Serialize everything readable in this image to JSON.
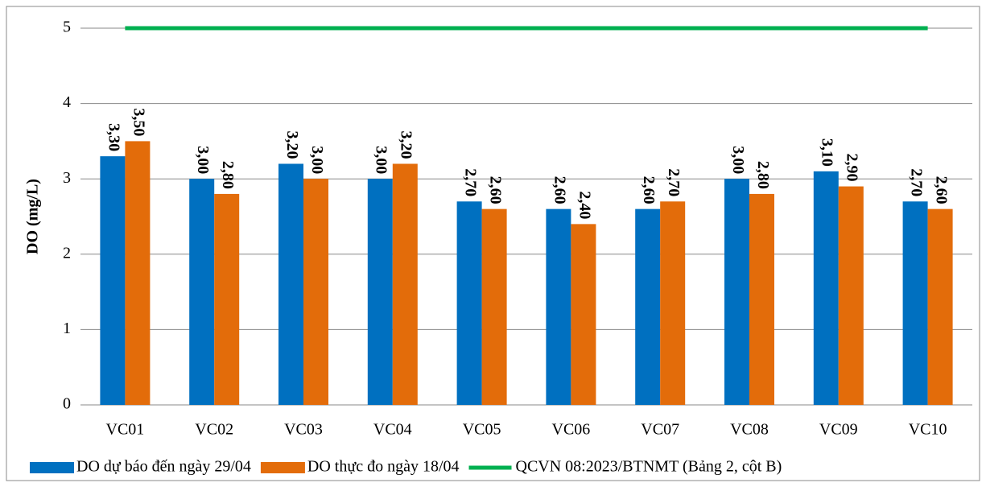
{
  "chart_data": {
    "type": "bar",
    "y_label": "DO (mg/L)",
    "categories": [
      "VC01",
      "VC02",
      "VC03",
      "VC04",
      "VC05",
      "VC06",
      "VC07",
      "VC08",
      "VC09",
      "VC10"
    ],
    "series": [
      {
        "name": "DO dự báo đến ngày 29/04",
        "color": "#0070c0",
        "type": "bar",
        "values": [
          3.3,
          3.0,
          3.2,
          3.0,
          2.7,
          2.6,
          2.6,
          3.0,
          3.1,
          2.7
        ],
        "value_labels": [
          "3,30",
          "3,00",
          "3,20",
          "3,00",
          "2,70",
          "2,60",
          "2,60",
          "3,00",
          "3,10",
          "2,70"
        ]
      },
      {
        "name": "DO thực đo ngày 18/04",
        "color": "#e36c0a",
        "type": "bar",
        "values": [
          3.5,
          2.8,
          3.0,
          3.2,
          2.6,
          2.4,
          2.7,
          2.8,
          2.9,
          2.6
        ],
        "value_labels": [
          "3,50",
          "2,80",
          "3,00",
          "3,20",
          "2,60",
          "2,40",
          "2,70",
          "2,80",
          "2,90",
          "2,60"
        ]
      },
      {
        "name": "QCVN 08:2023/BTNMT (Bảng 2, cột B)",
        "color": "#00b050",
        "type": "line",
        "values": [
          5,
          5,
          5,
          5,
          5,
          5,
          5,
          5,
          5,
          5
        ]
      }
    ],
    "ylim": [
      0,
      5
    ],
    "yticks": [
      0,
      1,
      2,
      3,
      4,
      5
    ],
    "grid": true
  }
}
